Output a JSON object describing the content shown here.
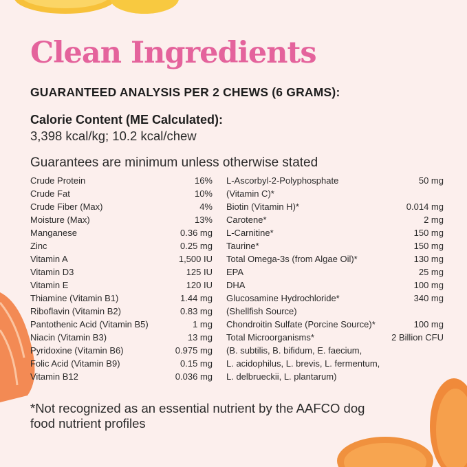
{
  "title": "Clean Ingredients",
  "heading": "GUARANTEED ANALYSIS PER 2 CHEWS (6 GRAMS):",
  "calorie": {
    "label": "Calorie Content (ME Calculated):",
    "value": "3,398 kcal/kg; 10.2 kcal/chew"
  },
  "guarantees_note": "Guarantees are minimum unless otherwise stated",
  "left_rows": [
    {
      "name": "Crude Protein",
      "value": "16%"
    },
    {
      "name": "Crude Fat",
      "value": "10%"
    },
    {
      "name": "Crude Fiber (Max)",
      "value": "4%"
    },
    {
      "name": "Moisture (Max)",
      "value": "13%"
    },
    {
      "name": "Manganese",
      "value": "0.36 mg"
    },
    {
      "name": "Zinc",
      "value": "0.25 mg"
    },
    {
      "name": "Vitamin A",
      "value": "1,500 IU"
    },
    {
      "name": "Vitamin D3",
      "value": "125 IU"
    },
    {
      "name": "Vitamin E",
      "value": "120 IU"
    },
    {
      "name": "Thiamine (Vitamin B1)",
      "value": "1.44 mg"
    },
    {
      "name": "Riboflavin (Vitamin B2)",
      "value": "0.83 mg"
    },
    {
      "name": "Pantothenic Acid (Vitamin B5)",
      "value": "1 mg"
    },
    {
      "name": "Niacin (Vitamin B3)",
      "value": "13 mg"
    },
    {
      "name": "Pyridoxine (Vitamin B6)",
      "value": "0.975 mg"
    },
    {
      "name": "Folic Acid (Vitamin B9)",
      "value": "0.15 mg"
    },
    {
      "name": "Vitamin B12",
      "value": "0.036 mg"
    }
  ],
  "right_rows": [
    {
      "name": "L-Ascorbyl-2-Polyphosphate",
      "value": "50 mg"
    },
    {
      "name": "(Vitamin C)*",
      "value": ""
    },
    {
      "name": "Biotin (Vitamin H)*",
      "value": "0.014 mg"
    },
    {
      "name": "Carotene*",
      "value": "2 mg"
    },
    {
      "name": "L-Carnitine*",
      "value": "150 mg"
    },
    {
      "name": "Taurine*",
      "value": "150 mg"
    },
    {
      "name": "Total Omega-3s (from Algae Oil)*",
      "value": "130 mg"
    },
    {
      "name": "EPA",
      "value": "25 mg"
    },
    {
      "name": "DHA",
      "value": "100 mg"
    },
    {
      "name": "Glucosamine Hydrochloride*",
      "value": "340 mg"
    },
    {
      "name": "(Shellfish Source)",
      "value": ""
    },
    {
      "name": "Chondroitin Sulfate (Porcine Source)*",
      "value": "100 mg"
    },
    {
      "name": "Total Microorganisms*",
      "value": "2 Billion CFU"
    },
    {
      "name": "(B. subtilis, B. bifidum, E. faecium,",
      "value": ""
    },
    {
      "name": "L. acidophilus,  L. brevis, L. fermentum,",
      "value": ""
    },
    {
      "name": "L. delbrueckii, L. plantarum)",
      "value": ""
    }
  ],
  "footnote": "*Not recognized as an essential nutrient by the AAFCO dog food nutrient profiles",
  "colors": {
    "background": "#fcefed",
    "title": "#e4639c",
    "text": "#1e1e1e"
  }
}
